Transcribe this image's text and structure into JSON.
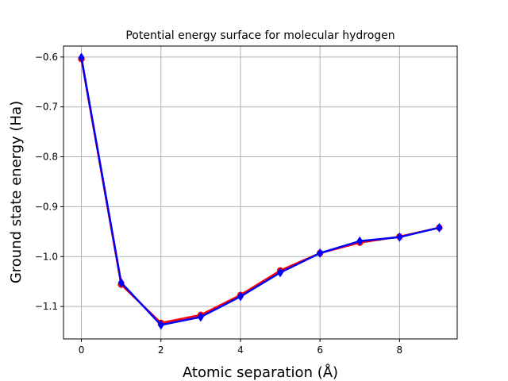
{
  "chart_data": {
    "type": "line",
    "title": "Potential energy surface for molecular hydrogen",
    "xlabel": "Atomic separation (Å)",
    "ylabel": "Ground state energy (Ha)",
    "xlim": [
      -0.45,
      9.45
    ],
    "ylim": [
      -1.165,
      -0.578
    ],
    "grid": true,
    "x": [
      0,
      1,
      2,
      3,
      4,
      5,
      6,
      7,
      8,
      9
    ],
    "xticks": [
      0,
      2,
      4,
      6,
      8
    ],
    "xtick_labels": [
      "0",
      "2",
      "4",
      "6",
      "8"
    ],
    "yticks": [
      -0.6,
      -0.7,
      -0.8,
      -0.9,
      -1.0,
      -1.1
    ],
    "ytick_labels": [
      "−0.6",
      "−0.7",
      "−0.8",
      "−0.9",
      "−1.0",
      "−1.1"
    ],
    "series": [
      {
        "color": "#ff0000",
        "marker": "circle",
        "values": [
          -0.604,
          -1.056,
          -1.133,
          -1.117,
          -1.077,
          -1.028,
          -0.993,
          -0.972,
          -0.96,
          -0.942
        ]
      },
      {
        "color": "#0000ff",
        "marker": "diamond",
        "values": [
          -0.601,
          -1.052,
          -1.137,
          -1.121,
          -1.08,
          -1.032,
          -0.993,
          -0.969,
          -0.961,
          -0.942
        ]
      }
    ]
  }
}
